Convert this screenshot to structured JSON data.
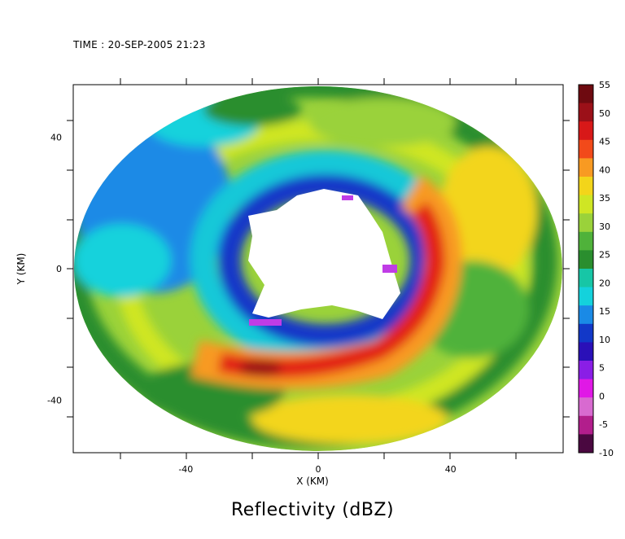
{
  "header": {
    "time_label": "TIME : 20-SEP-2005 21:23"
  },
  "chart_data": {
    "type": "heatmap",
    "title": "Reflectivity (dBZ)",
    "xlabel": "X (KM)",
    "ylabel": "Y (KM)",
    "xlim": [
      -74,
      74
    ],
    "ylim": [
      -56,
      56
    ],
    "x_ticks": [
      -40,
      0,
      40
    ],
    "y_ticks": [
      -40,
      0,
      40
    ],
    "colorbar": {
      "ticks": [
        55,
        50,
        45,
        40,
        35,
        30,
        25,
        20,
        15,
        10,
        5,
        0,
        -5,
        -10
      ],
      "range": [
        -10,
        55
      ],
      "colors": [
        "#6e0a10",
        "#9b1018",
        "#d81818",
        "#f24a1a",
        "#f89a22",
        "#f3d51a",
        "#cfe624",
        "#9ad23a",
        "#4fb23a",
        "#2a8e2e",
        "#17c6a6",
        "#14d2dc",
        "#1a8ae6",
        "#1238c8",
        "#2a10b8",
        "#8a1ee6",
        "#e018e6",
        "#d86ad0",
        "#b21e8c",
        "#4a0840"
      ]
    },
    "regions": [
      {
        "name": "outer",
        "value": 30
      },
      {
        "name": "eye-wall ring",
        "value": 12
      },
      {
        "name": "eye",
        "value": null
      },
      {
        "name": "rain-band max (south)",
        "value": 52
      },
      {
        "name": "rain-band (southeast)",
        "value": 45
      }
    ]
  }
}
